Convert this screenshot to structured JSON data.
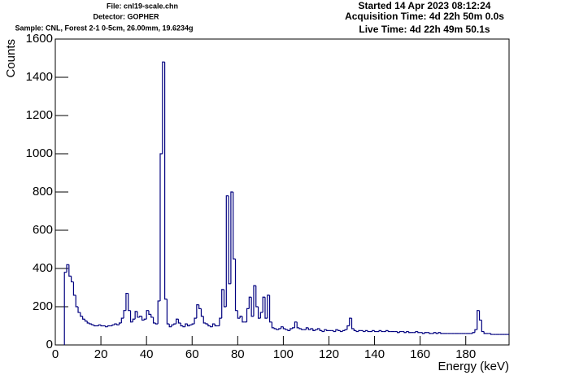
{
  "chart_data": {
    "type": "histogram",
    "header_left": [
      "File: cnl19-scale.chn",
      "Detector: GOPHER",
      "Sample: CNL, Forest 2-1 0-5cm, 26.00mm, 19.6234g"
    ],
    "header_right": [
      "Started 14 Apr 2023 08:12:24",
      "Acquisition Time: 4d 22h 50m 0.0s",
      "Live Time: 4d 22h 49m 50.1s"
    ],
    "x_label": "Energy (keV)",
    "y_label": "Counts",
    "color": "#00007f",
    "xlim": [
      0,
      199
    ],
    "ylim": [
      0,
      1600
    ],
    "xticks": [
      0,
      20,
      40,
      60,
      80,
      100,
      120,
      140,
      160,
      180
    ],
    "yticks": [
      0,
      200,
      400,
      600,
      800,
      1000,
      1200,
      1400,
      1600
    ],
    "bins": [
      4,
      5,
      6,
      7,
      8,
      9,
      10,
      11,
      12,
      13,
      14,
      15,
      16,
      17,
      18,
      19,
      20,
      21,
      22,
      23,
      24,
      25,
      26,
      27,
      28,
      29,
      30,
      31,
      32,
      33,
      34,
      35,
      36,
      37,
      38,
      39,
      40,
      41,
      42,
      43,
      44,
      45,
      46,
      47,
      48,
      49,
      50,
      51,
      52,
      53,
      54,
      55,
      56,
      57,
      58,
      59,
      60,
      61,
      62,
      63,
      64,
      65,
      66,
      67,
      68,
      69,
      70,
      71,
      72,
      73,
      74,
      75,
      76,
      77,
      78,
      79,
      80,
      81,
      82,
      83,
      84,
      85,
      86,
      87,
      88,
      89,
      90,
      91,
      92,
      93,
      94,
      95,
      96,
      97,
      98,
      99,
      100,
      101,
      102,
      103,
      104,
      105,
      106,
      107,
      108,
      109,
      110,
      111,
      112,
      113,
      114,
      115,
      116,
      117,
      118,
      119,
      120,
      121,
      122,
      123,
      124,
      125,
      126,
      127,
      128,
      129,
      130,
      131,
      132,
      133,
      134,
      135,
      136,
      137,
      138,
      139,
      140,
      141,
      142,
      143,
      144,
      145,
      146,
      147,
      148,
      149,
      150,
      151,
      152,
      153,
      154,
      155,
      156,
      157,
      158,
      159,
      160,
      161,
      162,
      163,
      164,
      165,
      166,
      167,
      168,
      169,
      170,
      171,
      172,
      173,
      174,
      175,
      176,
      177,
      178,
      179,
      180,
      181,
      182,
      183,
      184,
      185,
      186,
      187,
      188,
      189,
      190,
      191,
      192,
      193,
      194,
      195,
      196,
      197,
      198,
      199
    ],
    "values": [
      380,
      420,
      360,
      330,
      260,
      200,
      170,
      150,
      135,
      125,
      115,
      110,
      105,
      100,
      100,
      105,
      100,
      100,
      95,
      100,
      100,
      105,
      110,
      105,
      115,
      140,
      180,
      270,
      180,
      120,
      135,
      175,
      145,
      150,
      130,
      135,
      180,
      160,
      145,
      115,
      110,
      230,
      1000,
      1480,
      240,
      110,
      95,
      105,
      110,
      135,
      115,
      100,
      95,
      110,
      100,
      105,
      110,
      140,
      210,
      190,
      150,
      115,
      110,
      100,
      95,
      110,
      100,
      100,
      140,
      290,
      200,
      780,
      320,
      800,
      450,
      180,
      140,
      150,
      120,
      120,
      190,
      250,
      150,
      310,
      200,
      140,
      170,
      250,
      140,
      260,
      120,
      90,
      85,
      80,
      85,
      95,
      85,
      80,
      75,
      85,
      90,
      120,
      90,
      85,
      80,
      80,
      90,
      80,
      85,
      75,
      80,
      85,
      75,
      70,
      80,
      75,
      75,
      75,
      70,
      80,
      75,
      70,
      75,
      80,
      100,
      140,
      85,
      75,
      70,
      75,
      75,
      70,
      75,
      70,
      70,
      75,
      70,
      70,
      75,
      70,
      70,
      75,
      70,
      70,
      70,
      70,
      65,
      70,
      70,
      65,
      70,
      65,
      65,
      65,
      70,
      65,
      65,
      60,
      65,
      65,
      60,
      60,
      65,
      60,
      65,
      60,
      60,
      60,
      60,
      60,
      60,
      60,
      60,
      60,
      60,
      60,
      60,
      60,
      60,
      65,
      80,
      180,
      130,
      70,
      60,
      60,
      60,
      55,
      55,
      55,
      55,
      55,
      55,
      55,
      55
    ]
  }
}
